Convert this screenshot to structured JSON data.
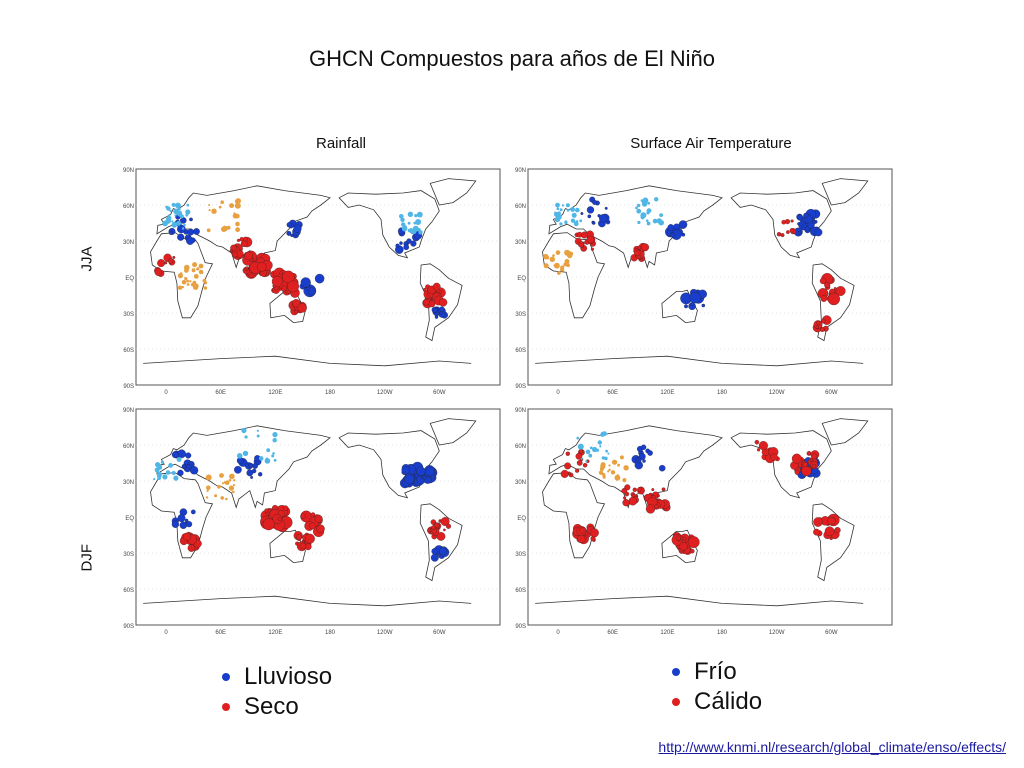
{
  "title": "GHCN Compuestos para años de El Niño",
  "columns": [
    "Rainfall",
    "Surface Air Temperature"
  ],
  "rows": [
    "JJA",
    "DJF"
  ],
  "lat_labels": [
    "90N",
    "60N",
    "30N",
    "EQ",
    "30S",
    "60S",
    "90S"
  ],
  "lon_labels": [
    "0",
    "60E",
    "120E",
    "180",
    "120W",
    "60W"
  ],
  "legend_rain": [
    {
      "label": "Lluvioso",
      "color": "#1a3ecc"
    },
    {
      "label": "Seco",
      "color": "#e02020"
    }
  ],
  "legend_temp": [
    {
      "label": "Frío",
      "color": "#1a3ecc"
    },
    {
      "label": "Cálido",
      "color": "#e02020"
    }
  ],
  "source_url": "http://www.knmi.nl/research/global_climate/enso/effects/",
  "colors": {
    "blue": "#1a3ecc",
    "red": "#e02020",
    "light_blue": "#4fb6e6",
    "orange": "#e8a040",
    "coast": "#333333"
  }
}
